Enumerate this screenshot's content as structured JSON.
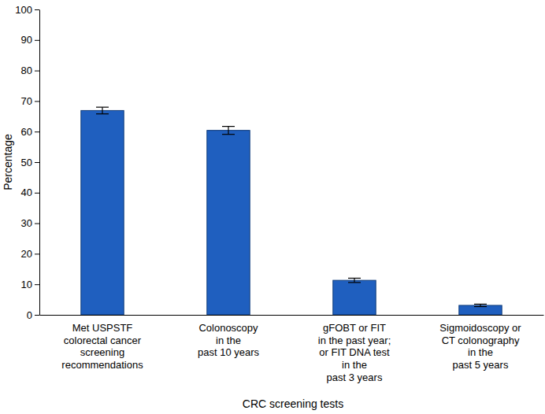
{
  "chart_data": {
    "type": "bar",
    "x_label": "CRC screening tests",
    "y_label": "Percentage",
    "categories": [
      "Met USPSTF\ncolorectal cancer\nscreening\nrecommendations",
      "Colonoscopy\nin the\npast 10 years",
      "gFOBT or FIT\nin the past year;\nor FIT DNA test\nin the\npast 3 years",
      "Sigmoidoscopy or\nCT colonography\nin the\npast 5 years"
    ],
    "values": [
      66.9,
      60.4,
      11.3,
      3.1
    ],
    "errors": [
      1.1,
      1.3,
      0.7,
      0.4
    ],
    "color": "#1f5fbf",
    "ylim": [
      0,
      100
    ],
    "yticks": [
      0,
      10,
      20,
      30,
      40,
      50,
      60,
      70,
      80,
      90,
      100
    ],
    "grid": false
  }
}
